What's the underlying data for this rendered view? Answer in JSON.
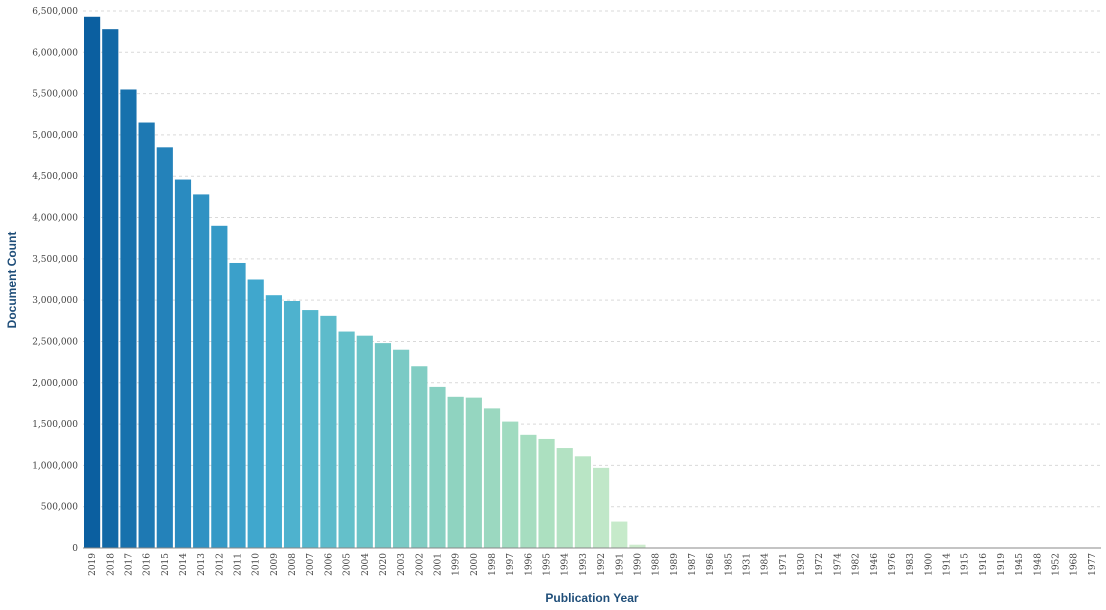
{
  "chart_data": {
    "type": "bar",
    "xlabel": "Publication Year",
    "ylabel": "Document Count",
    "ylim": [
      0,
      6500000
    ],
    "y_ticks": [
      0,
      500000,
      1000000,
      1500000,
      2000000,
      2500000,
      3000000,
      3500000,
      4000000,
      4500000,
      5000000,
      5500000,
      6000000,
      6500000
    ],
    "y_tick_labels": [
      "0",
      "500,000",
      "1,000,000",
      "1,500,000",
      "2,000,000",
      "2,500,000",
      "3,000,000",
      "3,500,000",
      "4,000,000",
      "4,500,000",
      "5,000,000",
      "5,500,000",
      "6,000,000",
      "6,500,000"
    ],
    "grid": true,
    "color_scale": [
      "#0b5fa0",
      "#2a8bc0",
      "#46aed0",
      "#6cc4c8",
      "#8fd3c0",
      "#ace0c0",
      "#cdeccd"
    ],
    "categories": [
      "2019",
      "2018",
      "2017",
      "2016",
      "2015",
      "2014",
      "2013",
      "2012",
      "2011",
      "2010",
      "2009",
      "2008",
      "2007",
      "2006",
      "2005",
      "2004",
      "2020",
      "2003",
      "2002",
      "2001",
      "1999",
      "2000",
      "1998",
      "1997",
      "1996",
      "1995",
      "1994",
      "1993",
      "1992",
      "1991",
      "1990",
      "1988",
      "1989",
      "1987",
      "1986",
      "1985",
      "1931",
      "1984",
      "1971",
      "1930",
      "1972",
      "1974",
      "1982",
      "1946",
      "1976",
      "1983",
      "1900",
      "1914",
      "1915",
      "1916",
      "1919",
      "1945",
      "1948",
      "1952",
      "1968",
      "1977"
    ],
    "values": [
      6430000,
      6280000,
      5550000,
      5150000,
      4850000,
      4460000,
      4280000,
      3900000,
      3450000,
      3250000,
      3060000,
      2990000,
      2880000,
      2810000,
      2620000,
      2570000,
      2480000,
      2400000,
      2200000,
      1950000,
      1830000,
      1820000,
      1690000,
      1530000,
      1370000,
      1320000,
      1210000,
      1110000,
      970000,
      320000,
      40000,
      3000,
      2500,
      2000,
      1500,
      1200,
      900,
      800,
      700,
      600,
      500,
      450,
      400,
      350,
      300,
      250,
      200,
      180,
      160,
      140,
      120,
      100,
      80,
      60,
      50,
      40
    ]
  }
}
